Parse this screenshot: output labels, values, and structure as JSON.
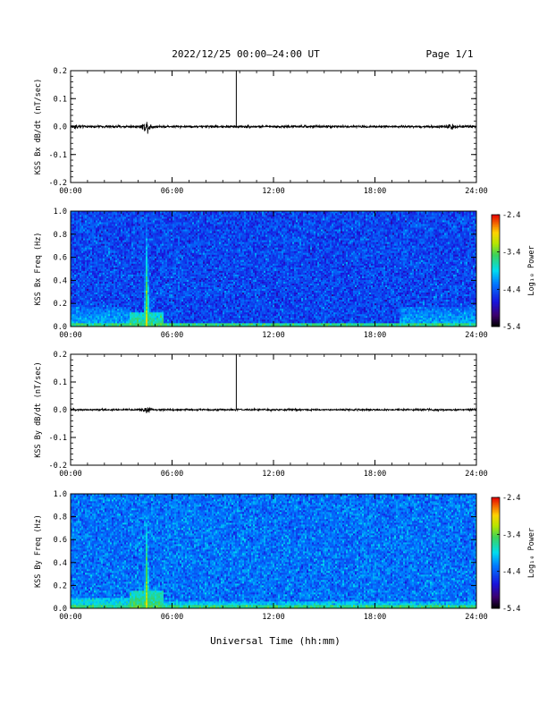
{
  "header": {
    "title": "2022/12/25  00:00–24:00 UT",
    "page_label": "Page 1/1"
  },
  "xlabel": "Universal Time (hh:mm)",
  "colors": {
    "trace": "#000000",
    "frame": "#000000",
    "background": "#ffffff"
  },
  "chart_data": [
    {
      "type": "line",
      "id": "bx-dbdt",
      "ylabel": "KSS Bx dB/dt (nT/sec)",
      "xlim": [
        0,
        24
      ],
      "ylim": [
        -0.2,
        0.2
      ],
      "x_ticks": [
        "00:00",
        "06:00",
        "12:00",
        "18:00",
        "24:00"
      ],
      "y_ticks": [
        "0.2",
        "0.1",
        "0.0",
        "-0.1",
        "-0.2"
      ],
      "y_tick_values": [
        0.2,
        0.1,
        0.0,
        -0.1,
        -0.2
      ],
      "baseline": 0.0,
      "noise_amplitude": 0.004,
      "bursts": [
        {
          "x": 0.3,
          "amplitude": 0.008
        },
        {
          "x": 4.5,
          "amplitude": 0.015
        },
        {
          "x": 22.5,
          "amplitude": 0.007
        }
      ],
      "spike": {
        "x": 9.8,
        "y": 0.2
      }
    },
    {
      "type": "heatmap",
      "id": "bx-spec",
      "ylabel": "KSS Bx Freq (Hz)",
      "xlim": [
        0,
        24
      ],
      "ylim": [
        0,
        1.0
      ],
      "x_ticks": [
        "00:00",
        "06:00",
        "12:00",
        "18:00",
        "24:00"
      ],
      "y_ticks": [
        "1.0",
        "0.8",
        "0.6",
        "0.4",
        "0.2",
        "0.0"
      ],
      "y_tick_values": [
        1.0,
        0.8,
        0.6,
        0.4,
        0.2,
        0.0
      ],
      "colorbar": {
        "label": "Log₁₀ Power",
        "ticks": [
          "-2.4",
          "-3.4",
          "-4.4",
          "-5.4"
        ],
        "tick_values": [
          -2.4,
          -3.4,
          -4.4,
          -5.4
        ],
        "range": [
          -5.4,
          -2.4
        ]
      },
      "background_level": -4.5,
      "low_freq_enhancement": [
        {
          "t_start": 0,
          "t_end": 3.5,
          "f_max": 0.17,
          "level": -4.0
        },
        {
          "t_start": 3.5,
          "t_end": 5.5,
          "f_max": 0.12,
          "level": -3.6
        },
        {
          "t_start": 19.5,
          "t_end": 24,
          "f_max": 0.17,
          "level": -4.0
        }
      ],
      "event_columns": [
        {
          "t": 4.5,
          "level": -3.0
        }
      ]
    },
    {
      "type": "line",
      "id": "by-dbdt",
      "ylabel": "KSS By dB/dt (nT/sec)",
      "xlim": [
        0,
        24
      ],
      "ylim": [
        -0.2,
        0.2
      ],
      "x_ticks": [
        "00:00",
        "06:00",
        "12:00",
        "18:00",
        "24:00"
      ],
      "y_ticks": [
        "0.2",
        "0.1",
        "0.0",
        "-0.1",
        "-0.2"
      ],
      "y_tick_values": [
        0.2,
        0.1,
        0.0,
        -0.1,
        -0.2
      ],
      "baseline": 0.0,
      "noise_amplitude": 0.003,
      "bursts": [
        {
          "x": 4.5,
          "amplitude": 0.012
        }
      ],
      "spike": {
        "x": 9.8,
        "y": 0.2
      }
    },
    {
      "type": "heatmap",
      "id": "by-spec",
      "ylabel": "KSS By Freq (Hz)",
      "xlim": [
        0,
        24
      ],
      "ylim": [
        0,
        1.0
      ],
      "x_ticks": [
        "00:00",
        "06:00",
        "12:00",
        "18:00",
        "24:00"
      ],
      "y_ticks": [
        "1.0",
        "0.8",
        "0.6",
        "0.4",
        "0.2",
        "0.0"
      ],
      "y_tick_values": [
        1.0,
        0.8,
        0.6,
        0.4,
        0.2,
        0.0
      ],
      "colorbar": {
        "label": "Log₁₀ Power",
        "ticks": [
          "-2.4",
          "-3.4",
          "-4.4",
          "-5.4"
        ],
        "tick_values": [
          -2.4,
          -3.4,
          -4.4,
          -5.4
        ],
        "range": [
          -5.4,
          -2.4
        ]
      },
      "background_level": -4.3,
      "low_freq_enhancement": [
        {
          "t_start": 0,
          "t_end": 3.5,
          "f_max": 0.1,
          "level": -3.8
        },
        {
          "t_start": 3.5,
          "t_end": 5.5,
          "f_max": 0.15,
          "level": -3.5
        },
        {
          "t_start": 5.5,
          "t_end": 24,
          "f_max": 0.06,
          "level": -3.9
        }
      ],
      "event_columns": [
        {
          "t": 4.5,
          "level": -3.0
        }
      ]
    }
  ]
}
